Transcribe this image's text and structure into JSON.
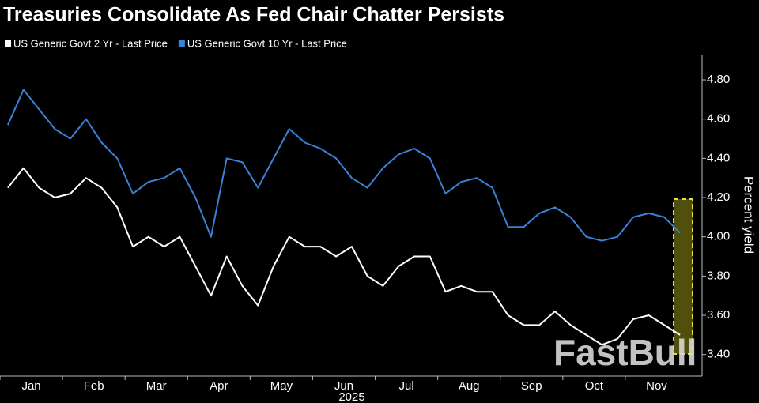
{
  "chart_data": {
    "type": "line",
    "title": "Treasuries Consolidate As Fed Chair Chatter Persists",
    "year_label": "2025",
    "y_axis_label": "Percent yield",
    "watermark": "FastBull",
    "categories": [
      "Jan",
      null,
      null,
      null,
      "Feb",
      null,
      null,
      null,
      "Mar",
      null,
      null,
      null,
      "Apr",
      null,
      null,
      null,
      "May",
      null,
      null,
      null,
      "Jun",
      null,
      null,
      null,
      "Jul",
      null,
      null,
      null,
      "Aug",
      null,
      null,
      null,
      "Sep",
      null,
      null,
      null,
      "Oct",
      null,
      null,
      null,
      "Nov",
      null,
      null,
      null
    ],
    "series": [
      {
        "name": "US Generic Govt 2 Yr - Last Price",
        "color": "#ffffff",
        "values": [
          4.25,
          4.35,
          4.25,
          4.2,
          4.22,
          4.3,
          4.25,
          4.15,
          3.95,
          4.0,
          3.95,
          4.0,
          3.85,
          3.7,
          3.9,
          3.75,
          3.65,
          3.85,
          4.0,
          3.95,
          3.95,
          3.9,
          3.95,
          3.8,
          3.75,
          3.85,
          3.9,
          3.9,
          3.72,
          3.75,
          3.72,
          3.72,
          3.6,
          3.55,
          3.55,
          3.62,
          3.55,
          3.5,
          3.45,
          3.48,
          3.58,
          3.6,
          3.55,
          3.5
        ]
      },
      {
        "name": "US Generic Govt 10 Yr - Last Price",
        "color": "#3b82d6",
        "values": [
          4.57,
          4.75,
          4.65,
          4.55,
          4.5,
          4.6,
          4.48,
          4.4,
          4.22,
          4.28,
          4.3,
          4.35,
          4.2,
          4.0,
          4.4,
          4.38,
          4.25,
          4.4,
          4.55,
          4.48,
          4.45,
          4.4,
          4.3,
          4.25,
          4.35,
          4.42,
          4.45,
          4.4,
          4.22,
          4.28,
          4.3,
          4.25,
          4.05,
          4.05,
          4.12,
          4.15,
          4.1,
          4.0,
          3.98,
          4.0,
          4.1,
          4.12,
          4.1,
          4.02
        ]
      }
    ],
    "ylim": [
      3.29,
      4.925
    ],
    "yticks": [
      {
        "value": 3.4,
        "label": "3.40"
      },
      {
        "value": 3.6,
        "label": "3.60"
      },
      {
        "value": 3.8,
        "label": "3.80"
      },
      {
        "value": 4.0,
        "label": "4.00"
      },
      {
        "value": 4.2,
        "label": "4.20"
      },
      {
        "value": 4.4,
        "label": "4.40"
      },
      {
        "value": 4.6,
        "label": "4.60"
      },
      {
        "value": 4.8,
        "label": "4.80"
      }
    ],
    "grid": false
  }
}
